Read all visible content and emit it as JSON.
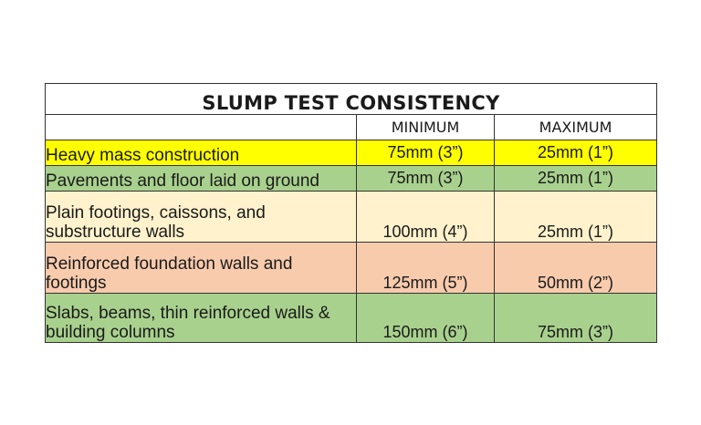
{
  "table": {
    "title": "SLUMP TEST CONSISTENCY",
    "columns": [
      "",
      "MINIMUM",
      "MAXIMUM"
    ],
    "rows": [
      {
        "label": "Heavy mass construction",
        "minimum": "75mm  (3”)",
        "maximum": "25mm  (1”)",
        "color": "#ffff00"
      },
      {
        "label": "Pavements and floor laid on ground",
        "minimum": "75mm  (3”)",
        "maximum": "25mm  (1”)",
        "color": "#a9d18e"
      },
      {
        "label": "Plain footings, caissons, and substructure walls",
        "minimum": "100mm  (4”)",
        "maximum": "25mm  (1”)",
        "color": "#fff2cc"
      },
      {
        "label": "Reinforced foundation walls and footings",
        "minimum": "125mm  (5”)",
        "maximum": "50mm  (2”)",
        "color": "#f8cbad"
      },
      {
        "label": "Slabs, beams, thin reinforced walls & building columns",
        "minimum": "150mm (6”)",
        "maximum": "75mm  (3”)",
        "color": "#a9d18e"
      }
    ]
  }
}
